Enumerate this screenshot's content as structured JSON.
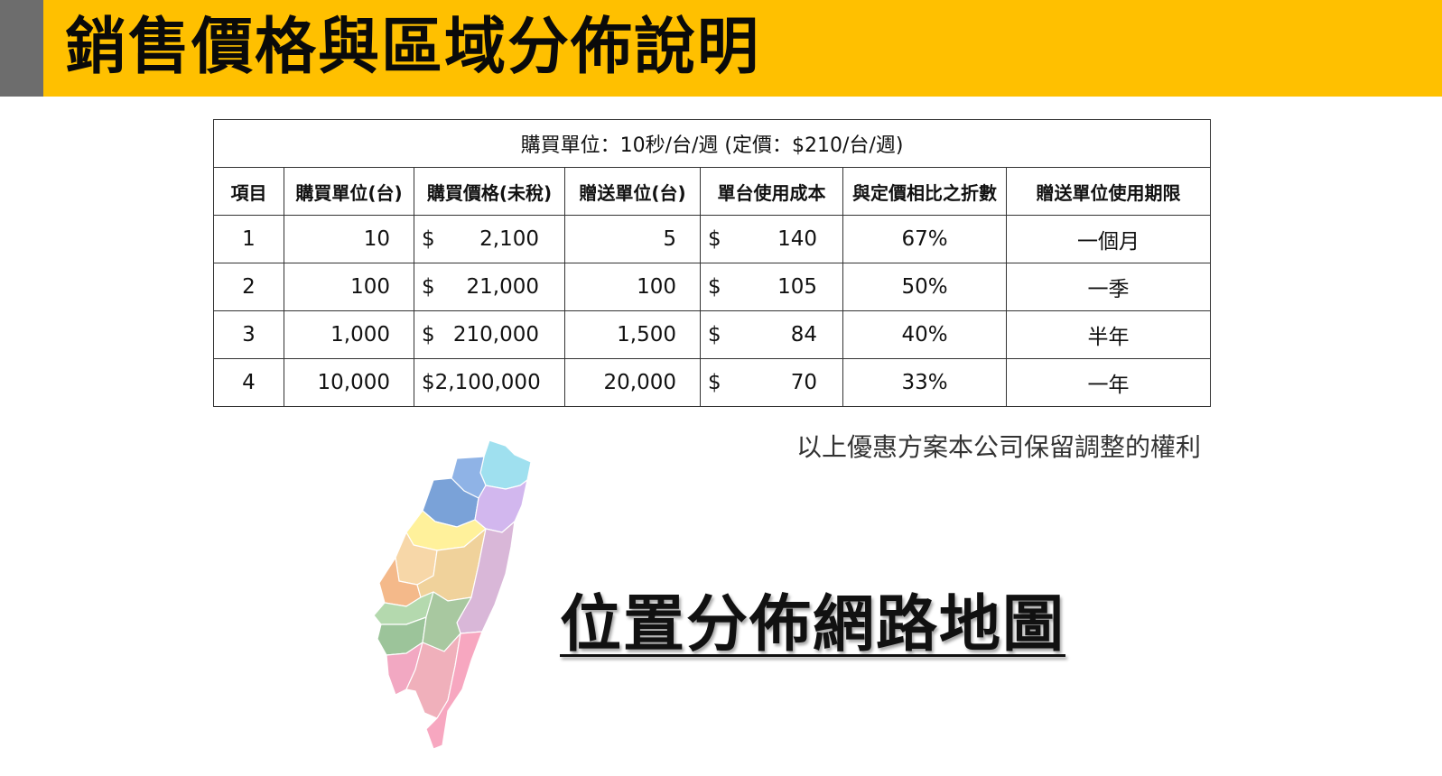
{
  "header": {
    "title": "銷售價格與區域分佈說明"
  },
  "table": {
    "caption": "購買單位：10秒/台/週 (定價：$210/台/週)",
    "columns": [
      "項目",
      "購買單位(台)",
      "購買價格(未稅)",
      "贈送單位(台)",
      "單台使用成本",
      "與定價相比之折數",
      "贈送單位使用期限"
    ],
    "rows": [
      {
        "item": "1",
        "units": "10",
        "price_symbol": "$",
        "price": "2,100",
        "bonus": "5",
        "cost_symbol": "$",
        "cost": "140",
        "discount": "67%",
        "period": "一個月"
      },
      {
        "item": "2",
        "units": "100",
        "price_symbol": "$",
        "price": "21,000",
        "bonus": "100",
        "cost_symbol": "$",
        "cost": "105",
        "discount": "50%",
        "period": "一季"
      },
      {
        "item": "3",
        "units": "1,000",
        "price_symbol": "$",
        "price": "210,000",
        "bonus": "1,500",
        "cost_symbol": "$",
        "cost": "84",
        "discount": "40%",
        "period": "半年"
      },
      {
        "item": "4",
        "units": "10,000",
        "price_symbol": "$",
        "price": "2,100,000",
        "bonus": "20,000",
        "cost_symbol": "$",
        "cost": "70",
        "discount": "33%",
        "period": "一年"
      }
    ]
  },
  "note": "以上優惠方案本公司保留調整的權利",
  "map": {
    "title": "位置分佈網路地圖",
    "region_colors": [
      "#9fe0ef",
      "#8fb3e6",
      "#7aa2d8",
      "#d2b7ee",
      "#fff19b",
      "#f7d7a8",
      "#f4b98a",
      "#f0d29b",
      "#d9b7d8",
      "#b4d9ae",
      "#9cc49a",
      "#a8c8a0",
      "#f2a8c2",
      "#f0b0bb",
      "#f7a7c0"
    ]
  }
}
